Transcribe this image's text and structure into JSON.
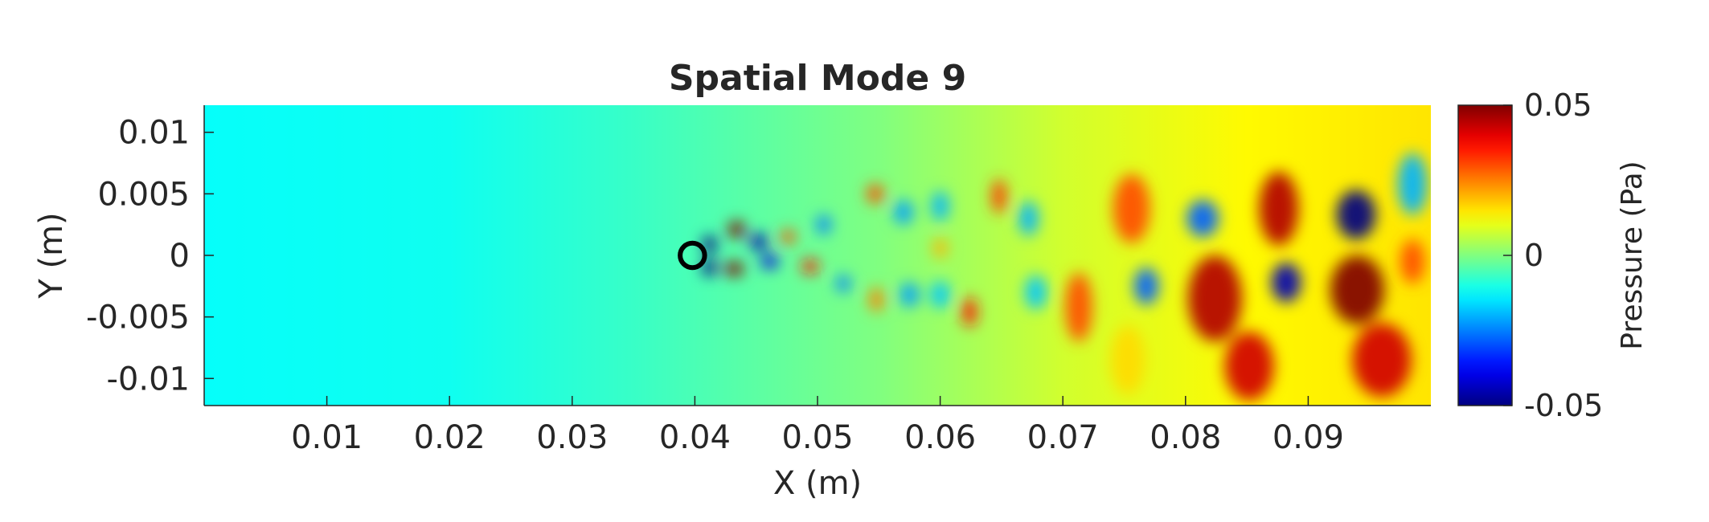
{
  "chart_data": {
    "type": "heatmap",
    "title": "Spatial Mode 9",
    "xlabel": "X (m)",
    "ylabel": "Y (m)",
    "xlim": [
      0,
      0.1
    ],
    "ylim": [
      -0.0122,
      0.0122
    ],
    "xticks": [
      0.01,
      0.02,
      0.03,
      0.04,
      0.05,
      0.06,
      0.07,
      0.08,
      0.09
    ],
    "xtick_labels": [
      "0.01",
      "0.02",
      "0.03",
      "0.04",
      "0.05",
      "0.06",
      "0.07",
      "0.08",
      "0.09"
    ],
    "yticks": [
      0.01,
      0.005,
      0,
      -0.005,
      -0.01
    ],
    "ytick_labels": [
      "0.01",
      "0.005",
      "0",
      "-0.005",
      "-0.01"
    ],
    "colorbar": {
      "label": "Pressure (Pa)",
      "colormap": "jet",
      "clim": [
        -0.05,
        0.05
      ],
      "ticks": [
        0.05,
        0,
        -0.05
      ],
      "tick_labels": [
        "0.05",
        "0",
        "-0.05"
      ]
    },
    "cylinder": {
      "x": 0.0398,
      "y": 0,
      "radius": 0.001
    },
    "background_gradient": [
      {
        "x": 0.0,
        "value": -0.012
      },
      {
        "x": 0.02,
        "value": -0.011
      },
      {
        "x": 0.035,
        "value": -0.007
      },
      {
        "x": 0.055,
        "value": 0.0
      },
      {
        "x": 0.07,
        "value": 0.008
      },
      {
        "x": 0.085,
        "value": 0.013
      },
      {
        "x": 0.1,
        "value": 0.015
      }
    ],
    "pressure_features": [
      {
        "x": 0.0434,
        "y": 0.0021,
        "rx": 0.0007,
        "ry": 0.0007,
        "value": 0.05
      },
      {
        "x": 0.0432,
        "y": -0.0011,
        "rx": 0.0008,
        "ry": 0.0006,
        "value": 0.05
      },
      {
        "x": 0.0412,
        "y": 0.0009,
        "rx": 0.0006,
        "ry": 0.0007,
        "value": -0.05
      },
      {
        "x": 0.0412,
        "y": -0.001,
        "rx": 0.0006,
        "ry": 0.0007,
        "value": -0.05
      },
      {
        "x": 0.0452,
        "y": 0.0011,
        "rx": 0.0007,
        "ry": 0.0007,
        "value": -0.045
      },
      {
        "x": 0.0461,
        "y": -0.0005,
        "rx": 0.0007,
        "ry": 0.0006,
        "value": -0.04
      },
      {
        "x": 0.0476,
        "y": 0.0015,
        "rx": 0.0006,
        "ry": 0.0006,
        "value": 0.03
      },
      {
        "x": 0.0494,
        "y": -0.0009,
        "rx": 0.0007,
        "ry": 0.0006,
        "value": 0.035
      },
      {
        "x": 0.0505,
        "y": 0.0025,
        "rx": 0.0006,
        "ry": 0.0008,
        "value": -0.025
      },
      {
        "x": 0.0521,
        "y": -0.0023,
        "rx": 0.0006,
        "ry": 0.0007,
        "value": -0.025
      },
      {
        "x": 0.0547,
        "y": 0.005,
        "rx": 0.0007,
        "ry": 0.0008,
        "value": 0.03
      },
      {
        "x": 0.0548,
        "y": -0.0036,
        "rx": 0.0006,
        "ry": 0.001,
        "value": 0.025
      },
      {
        "x": 0.057,
        "y": 0.0035,
        "rx": 0.0008,
        "ry": 0.001,
        "value": -0.022
      },
      {
        "x": 0.0575,
        "y": -0.0032,
        "rx": 0.0008,
        "ry": 0.001,
        "value": -0.022
      },
      {
        "x": 0.06,
        "y": 0.004,
        "rx": 0.0007,
        "ry": 0.0012,
        "value": -0.02
      },
      {
        "x": 0.06,
        "y": -0.0032,
        "rx": 0.0008,
        "ry": 0.0011,
        "value": -0.018
      },
      {
        "x": 0.06,
        "y": 0.0006,
        "rx": 0.0006,
        "ry": 0.0008,
        "value": 0.02
      },
      {
        "x": 0.0624,
        "y": -0.0046,
        "rx": 0.0006,
        "ry": 0.0012,
        "value": 0.035
      },
      {
        "x": 0.0648,
        "y": 0.0048,
        "rx": 0.0006,
        "ry": 0.0014,
        "value": 0.032
      },
      {
        "x": 0.0672,
        "y": 0.003,
        "rx": 0.0008,
        "ry": 0.0014,
        "value": -0.02
      },
      {
        "x": 0.0678,
        "y": -0.003,
        "rx": 0.0009,
        "ry": 0.0014,
        "value": -0.018
      },
      {
        "x": 0.0713,
        "y": -0.0042,
        "rx": 0.0011,
        "ry": 0.0028,
        "value": 0.03
      },
      {
        "x": 0.0756,
        "y": 0.0038,
        "rx": 0.0015,
        "ry": 0.0028,
        "value": 0.03
      },
      {
        "x": 0.0768,
        "y": -0.0025,
        "rx": 0.001,
        "ry": 0.0015,
        "value": -0.028
      },
      {
        "x": 0.0753,
        "y": -0.0085,
        "rx": 0.0014,
        "ry": 0.0028,
        "value": 0.016
      },
      {
        "x": 0.0814,
        "y": 0.003,
        "rx": 0.0013,
        "ry": 0.0015,
        "value": -0.028
      },
      {
        "x": 0.0824,
        "y": -0.0035,
        "rx": 0.0022,
        "ry": 0.0035,
        "value": 0.045
      },
      {
        "x": 0.0852,
        "y": -0.009,
        "rx": 0.002,
        "ry": 0.0028,
        "value": 0.042
      },
      {
        "x": 0.0876,
        "y": 0.0038,
        "rx": 0.0016,
        "ry": 0.003,
        "value": 0.045
      },
      {
        "x": 0.0882,
        "y": -0.0022,
        "rx": 0.0012,
        "ry": 0.0016,
        "value": -0.045
      },
      {
        "x": 0.0939,
        "y": 0.0033,
        "rx": 0.0016,
        "ry": 0.002,
        "value": -0.05
      },
      {
        "x": 0.094,
        "y": -0.0028,
        "rx": 0.0022,
        "ry": 0.0028,
        "value": 0.06
      },
      {
        "x": 0.096,
        "y": -0.0085,
        "rx": 0.0024,
        "ry": 0.003,
        "value": 0.042
      },
      {
        "x": 0.0985,
        "y": 0.0058,
        "rx": 0.0012,
        "ry": 0.0025,
        "value": -0.02
      },
      {
        "x": 0.0985,
        "y": -0.0005,
        "rx": 0.001,
        "ry": 0.0018,
        "value": 0.03
      }
    ]
  }
}
